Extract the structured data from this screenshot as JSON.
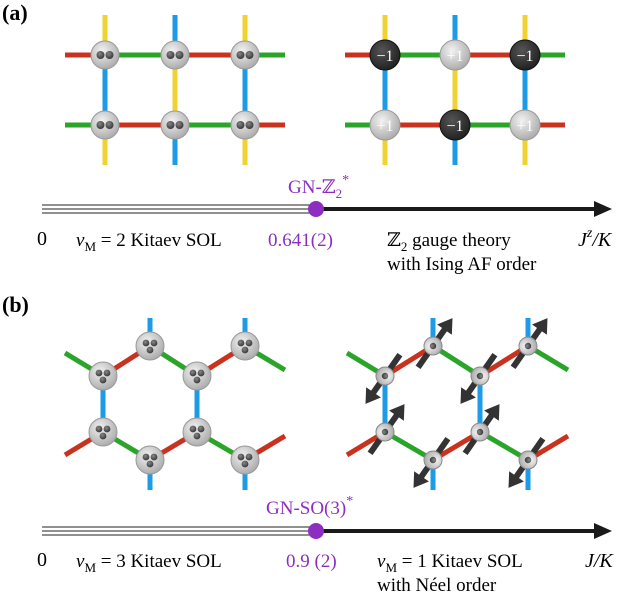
{
  "colors": {
    "red": "#c8321e",
    "green": "#2aa52a",
    "blue": "#1e9be6",
    "yellow": "#f0d232",
    "purple": "#8c2fc0",
    "arrow": "#1a1a1a",
    "spin_light": "#d8d8d8",
    "spin_dark": "#2f2f2f"
  },
  "panel_a": {
    "label": "(a)",
    "charges": [
      "−1",
      "+1",
      "−1",
      "+1",
      "−1",
      "+1"
    ],
    "critical_label": "GN-ℤ",
    "critical_sub": "2",
    "critical_sup": "*",
    "axis_zero": "0",
    "left_phase_nu": "ν",
    "left_phase_sub": "M",
    "left_phase_rest": " = 2 Kitaev SOL",
    "critical_value": "0.641(2)",
    "right_phase_line1_sym": "ℤ",
    "right_phase_line1_sub": "2",
    "right_phase_line1_rest": " gauge theory",
    "right_phase_line2": "with Ising AF order",
    "axis_label_main": "J",
    "axis_label_sup": "z",
    "axis_label_rest": "/K"
  },
  "panel_b": {
    "label": "(b)",
    "critical_label": "GN-SO(3)",
    "critical_sup": "*",
    "axis_zero": "0",
    "left_phase_nu": "ν",
    "left_phase_sub": "M",
    "left_phase_rest": " = 3 Kitaev SOL",
    "critical_value": "0.9 (2)",
    "right_phase_nu": "ν",
    "right_phase_sub": "M",
    "right_phase_rest": " = 1 Kitaev SOL",
    "right_phase_line2": "with Néel order",
    "axis_label": "J/K"
  }
}
